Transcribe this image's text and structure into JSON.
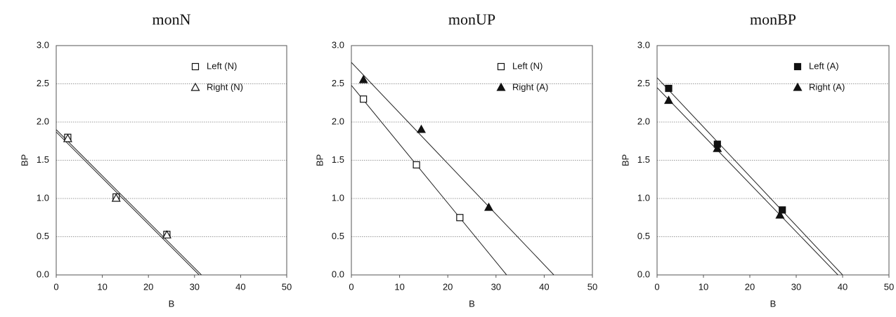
{
  "chart_data": [
    {
      "type": "scatter",
      "title": "monN",
      "xlabel": "B",
      "ylabel": "BP",
      "xlim": [
        0,
        50
      ],
      "ylim": [
        0,
        3
      ],
      "xticks": [
        0,
        10,
        20,
        30,
        40,
        50
      ],
      "yticks": [
        {
          "value": 0,
          "label": "0.0"
        },
        {
          "value": 0.5,
          "label": "0.5"
        },
        {
          "value": 1,
          "label": "1.0"
        },
        {
          "value": 1.5,
          "label": "1.5"
        },
        {
          "value": 2,
          "label": "2.0"
        },
        {
          "value": 2.5,
          "label": "2.5"
        },
        {
          "value": 3,
          "label": "3.0"
        }
      ],
      "grid": true,
      "legend": "upper right",
      "series": [
        {
          "name": "Left (N)",
          "color": "#111111",
          "marker": "square",
          "filled": false,
          "x": [
            2.5,
            13,
            24
          ],
          "values": [
            1.8,
            1.02,
            0.53
          ],
          "fit": {
            "x": [
              0,
              31.5
            ],
            "values": [
              1.9,
              0
            ]
          }
        },
        {
          "name": "Right (N)",
          "color": "#111111",
          "marker": "triangle",
          "filled": false,
          "x": [
            2.5,
            13,
            24
          ],
          "values": [
            1.78,
            1.0,
            0.52
          ],
          "fit": {
            "x": [
              0,
              31
            ],
            "values": [
              1.87,
              0
            ]
          }
        }
      ]
    },
    {
      "type": "scatter",
      "title": "monUP",
      "xlabel": "B",
      "ylabel": "BP",
      "xlim": [
        0,
        50
      ],
      "ylim": [
        0,
        3
      ],
      "xticks": [
        0,
        10,
        20,
        30,
        40,
        50
      ],
      "yticks": [
        {
          "value": 0,
          "label": "0.0"
        },
        {
          "value": 0.5,
          "label": "0.5"
        },
        {
          "value": 1,
          "label": "1.0"
        },
        {
          "value": 1.5,
          "label": "1.5"
        },
        {
          "value": 2,
          "label": "2.0"
        },
        {
          "value": 2.5,
          "label": "2.5"
        },
        {
          "value": 3,
          "label": "3.0"
        }
      ],
      "grid": true,
      "legend": "upper right",
      "series": [
        {
          "name": "Left (N)",
          "color": "#111111",
          "marker": "square",
          "filled": false,
          "x": [
            2.5,
            13.5,
            22.5
          ],
          "values": [
            2.3,
            1.44,
            0.75
          ],
          "fit": {
            "x": [
              0,
              32.2
            ],
            "values": [
              2.48,
              0
            ]
          }
        },
        {
          "name": "Right (A)",
          "color": "#111111",
          "marker": "triangle",
          "filled": true,
          "x": [
            2.5,
            14.5,
            28.5
          ],
          "values": [
            2.55,
            1.9,
            0.88
          ],
          "fit": {
            "x": [
              0,
              42
            ],
            "values": [
              2.78,
              0
            ]
          }
        }
      ]
    },
    {
      "type": "scatter",
      "title": "monBP",
      "xlabel": "B",
      "ylabel": "BP",
      "xlim": [
        0,
        50
      ],
      "ylim": [
        0,
        3
      ],
      "xticks": [
        0,
        10,
        20,
        30,
        40,
        50
      ],
      "yticks": [
        {
          "value": 0,
          "label": "0.0"
        },
        {
          "value": 0.5,
          "label": "0.5"
        },
        {
          "value": 1,
          "label": "1.0"
        },
        {
          "value": 1.5,
          "label": "1.5"
        },
        {
          "value": 2,
          "label": "2.0"
        },
        {
          "value": 2.5,
          "label": "2.5"
        },
        {
          "value": 3,
          "label": "3.0"
        }
      ],
      "grid": true,
      "legend": "upper right",
      "series": [
        {
          "name": "Left (A)",
          "color": "#111111",
          "marker": "square",
          "filled": true,
          "x": [
            2.5,
            13,
            27
          ],
          "values": [
            2.44,
            1.71,
            0.85
          ],
          "fit": {
            "x": [
              0,
              40
            ],
            "values": [
              2.58,
              0
            ]
          }
        },
        {
          "name": "Right (A)",
          "color": "#111111",
          "marker": "triangle",
          "filled": true,
          "x": [
            2.5,
            13,
            26.5
          ],
          "values": [
            2.28,
            1.65,
            0.78
          ],
          "fit": {
            "x": [
              0,
              39
            ],
            "values": [
              2.45,
              0
            ]
          }
        }
      ]
    }
  ]
}
